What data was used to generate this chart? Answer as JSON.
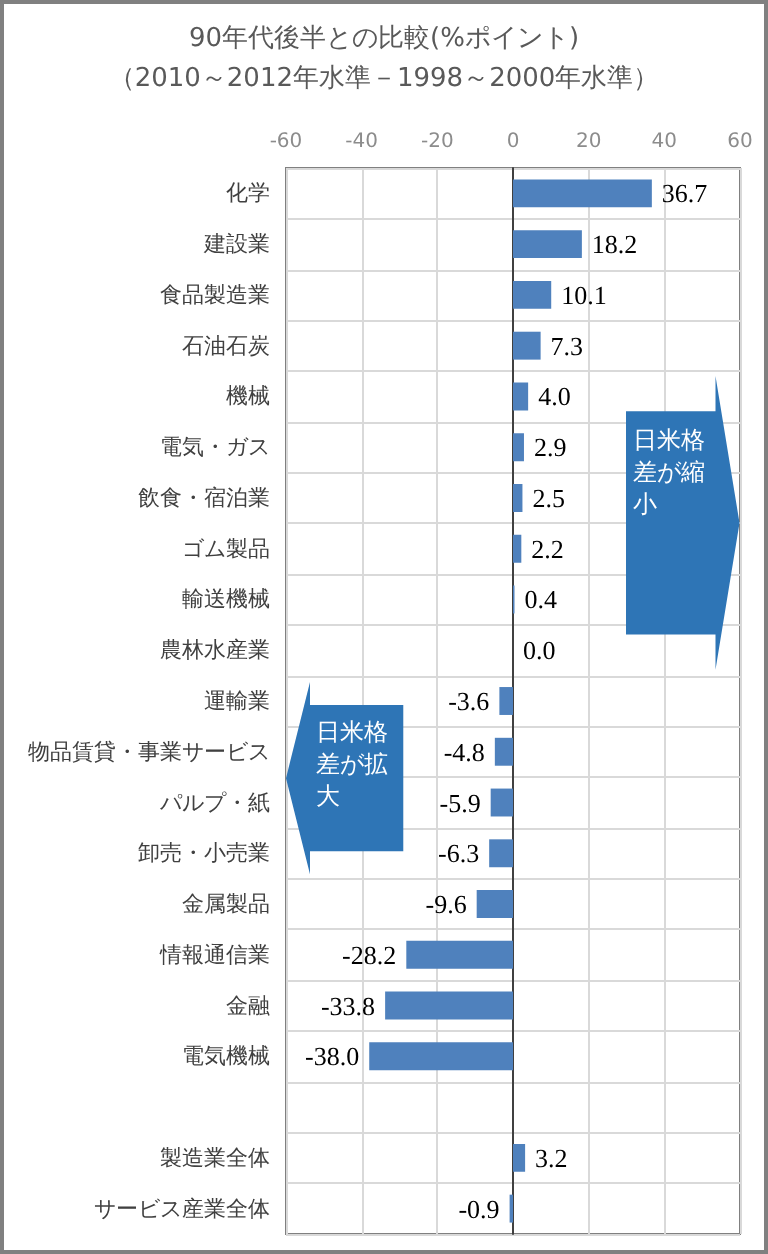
{
  "chart_data": {
    "type": "bar",
    "orientation": "horizontal",
    "title": "90年代後半との比較(%ポイント)",
    "subtitle": "（2010～2012年水準－1998～2000年水準）",
    "categories": [
      "化学",
      "建設業",
      "食品製造業",
      "石油石炭",
      "機械",
      "電気・ガス",
      "飲食・宿泊業",
      "ゴム製品",
      "輸送機械",
      "農林水産業",
      "運輸業",
      "物品賃貸・事業サービス",
      "パルプ・紙",
      "卸売・小売業",
      "金属製品",
      "情報通信業",
      "金融",
      "電気機械",
      null,
      "製造業全体",
      "サービス産業全体"
    ],
    "values": [
      36.7,
      18.2,
      10.1,
      7.3,
      4.0,
      2.9,
      2.5,
      2.2,
      0.4,
      0.0,
      -3.6,
      -4.8,
      -5.9,
      -6.3,
      -9.6,
      -28.2,
      -33.8,
      -38.0,
      null,
      3.2,
      -0.9
    ],
    "value_labels": [
      "36.7",
      "18.2",
      "10.1",
      "7.3",
      "4.0",
      "2.9",
      "2.5",
      "2.2",
      "0.4",
      "0.0",
      "-3.6",
      "-4.8",
      "-5.9",
      "-6.3",
      "-9.6",
      "-28.2",
      "-33.8",
      "-38.0",
      null,
      "3.2",
      "-0.9"
    ],
    "color": "#4f81bd",
    "xlim": [
      -60,
      60
    ],
    "xticks": [
      -60,
      -40,
      -20,
      0,
      20,
      40,
      60
    ],
    "grid": true,
    "annotations": [
      {
        "text": "日米格差が縮小"
      },
      {
        "text": "日米格差が拡大"
      }
    ]
  }
}
